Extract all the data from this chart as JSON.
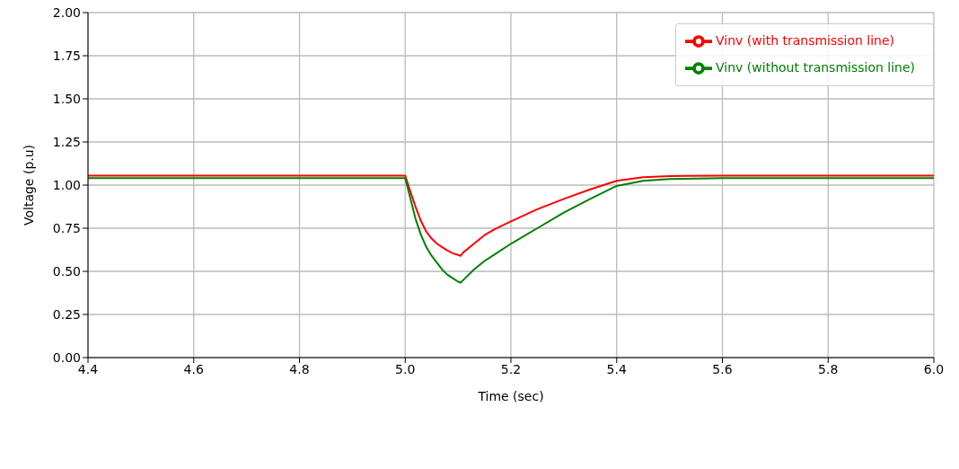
{
  "chart_data": {
    "type": "line",
    "xlabel": "Time (sec)",
    "ylabel": "Voltage (p.u)",
    "xlim": [
      4.4,
      6.0
    ],
    "ylim": [
      0,
      2.0
    ],
    "xticks": [
      4.4,
      4.6,
      4.8,
      {
        "value": 5.0,
        "label": "5.0"
      },
      5.2,
      5.4,
      5.6,
      5.8,
      {
        "value": 6.0,
        "label": "6.0"
      }
    ],
    "yticks": [
      {
        "value": 0,
        "label": "0.00"
      },
      0.25,
      {
        "value": 0.5,
        "label": "0.50"
      },
      0.75,
      {
        "value": 1.0,
        "label": "1.00"
      },
      1.25,
      {
        "value": 1.5,
        "label": "1.50"
      },
      1.75,
      {
        "value": 2.0,
        "label": "2.00"
      }
    ],
    "grid": true,
    "legend": "top right",
    "marker": "none",
    "line_style": "solid",
    "series": [
      {
        "name": "Vinv (with transmission line)",
        "color": "#ff0000",
        "x": [
          4.4,
          5.0,
          5.01,
          5.02,
          5.03,
          5.04,
          5.05,
          5.06,
          5.07,
          5.08,
          5.09,
          5.1,
          5.105,
          5.11,
          5.13,
          5.15,
          5.17,
          5.2,
          5.25,
          5.3,
          5.35,
          5.4,
          5.45,
          5.5,
          5.6,
          6.0
        ],
        "values": [
          1.055,
          1.055,
          0.96,
          0.87,
          0.79,
          0.73,
          0.69,
          0.66,
          0.64,
          0.62,
          0.605,
          0.595,
          0.59,
          0.61,
          0.66,
          0.71,
          0.745,
          0.79,
          0.86,
          0.92,
          0.975,
          1.025,
          1.045,
          1.052,
          1.055,
          1.055
        ]
      },
      {
        "name": "Vinv (without transmission line)",
        "color": "#008000",
        "x": [
          4.4,
          5.0,
          5.01,
          5.02,
          5.03,
          5.04,
          5.05,
          5.06,
          5.07,
          5.08,
          5.09,
          5.1,
          5.105,
          5.11,
          5.13,
          5.15,
          5.17,
          5.2,
          5.25,
          5.3,
          5.35,
          5.4,
          5.45,
          5.5,
          5.6,
          6.0
        ],
        "values": [
          1.04,
          1.04,
          0.92,
          0.8,
          0.71,
          0.64,
          0.59,
          0.55,
          0.51,
          0.48,
          0.46,
          0.44,
          0.435,
          0.45,
          0.51,
          0.56,
          0.6,
          0.66,
          0.75,
          0.84,
          0.92,
          0.995,
          1.025,
          1.035,
          1.04,
          1.04
        ]
      }
    ]
  }
}
